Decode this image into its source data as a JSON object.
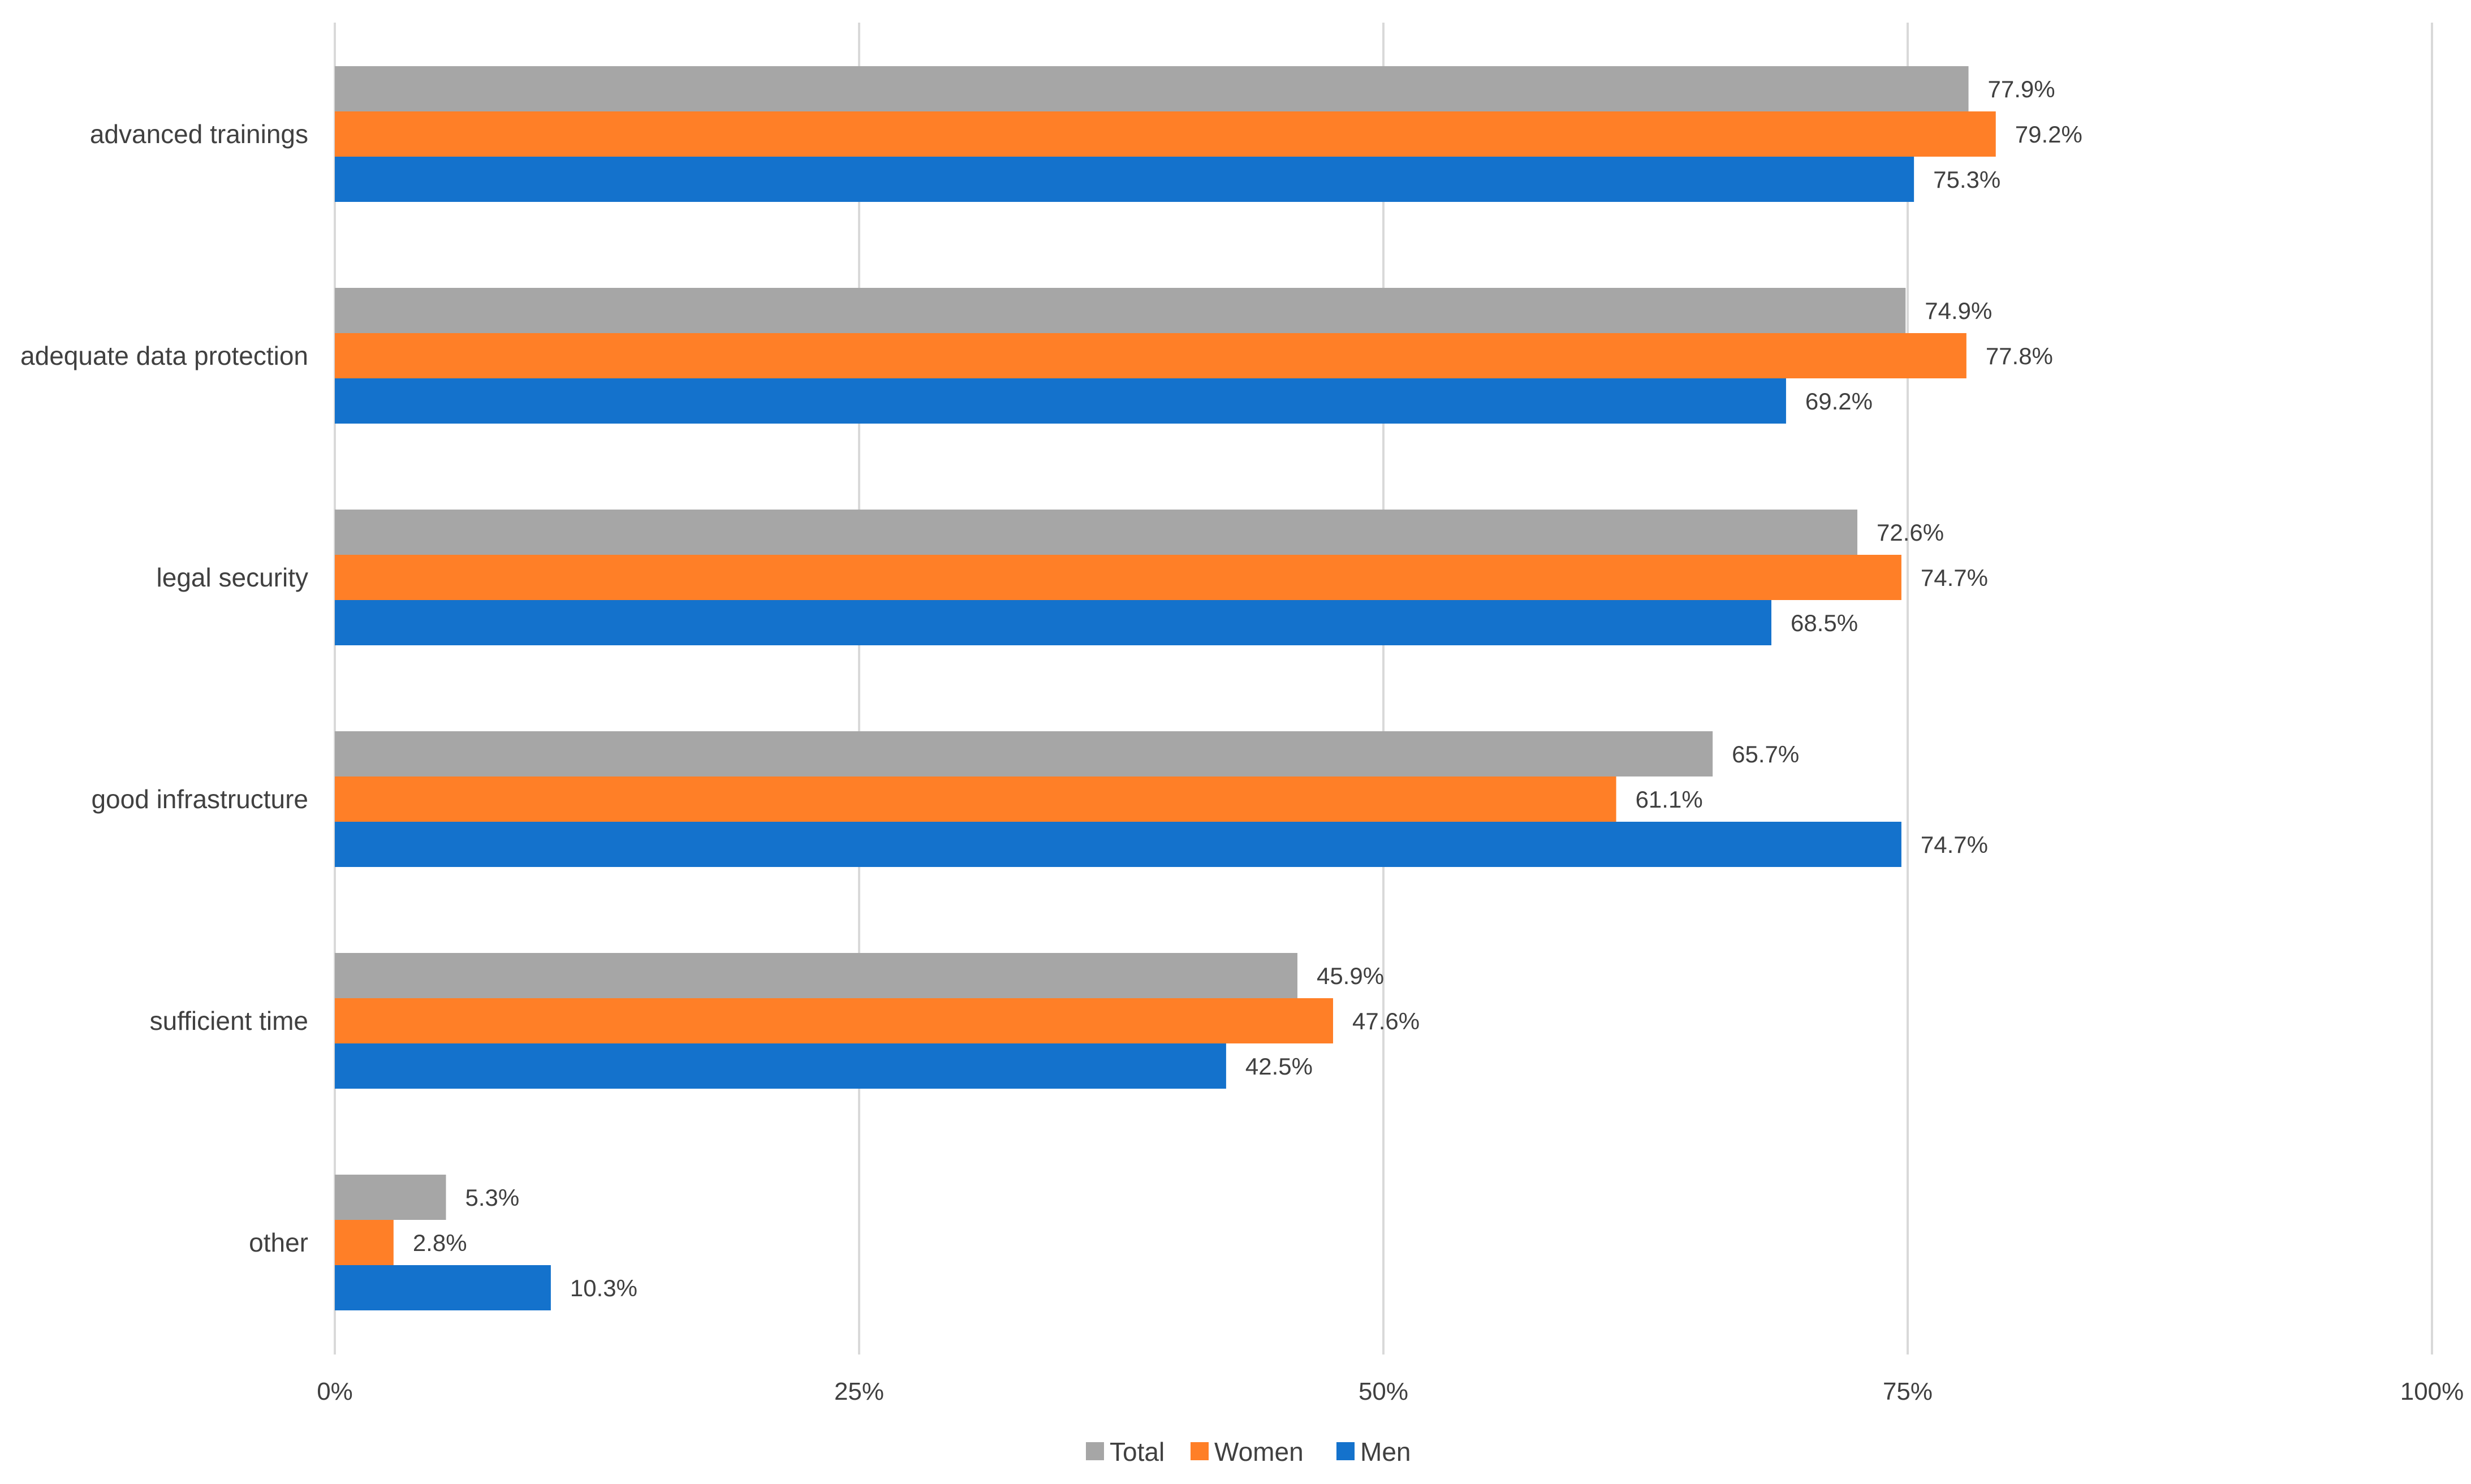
{
  "chart_data": {
    "type": "bar",
    "orientation": "horizontal",
    "categories": [
      "advanced trainings",
      "adequate data protection",
      "legal security",
      "good infrastructure",
      "sufficient time",
      "other"
    ],
    "series": [
      {
        "name": "Total",
        "color": "#A6A6A6",
        "values": [
          77.9,
          74.9,
          72.6,
          65.7,
          45.9,
          5.3
        ],
        "labels": [
          "77.9%",
          "74.9%",
          "72.6%",
          "65.7%",
          "45.9%",
          "5.3%"
        ]
      },
      {
        "name": "Women",
        "color": "#FF7F27",
        "values": [
          79.2,
          77.8,
          74.7,
          61.1,
          47.6,
          2.8
        ],
        "labels": [
          "79.2%",
          "77.8%",
          "74.7%",
          "61.1%",
          "47.6%",
          "2.8%"
        ]
      },
      {
        "name": "Men",
        "color": "#1472CC",
        "values": [
          75.3,
          69.2,
          68.5,
          74.7,
          42.5,
          10.3
        ],
        "labels": [
          "75.3%",
          "69.2%",
          "68.5%",
          "74.7%",
          "42.5%",
          "10.3%"
        ]
      }
    ],
    "xlim": [
      0,
      100
    ],
    "xticks": [
      0,
      25,
      50,
      75,
      100
    ],
    "xtick_labels": [
      "0%",
      "25%",
      "50%",
      "75%",
      "100%"
    ],
    "grid": true,
    "legend_position": "bottom",
    "title": "",
    "xlabel": "",
    "ylabel": ""
  }
}
